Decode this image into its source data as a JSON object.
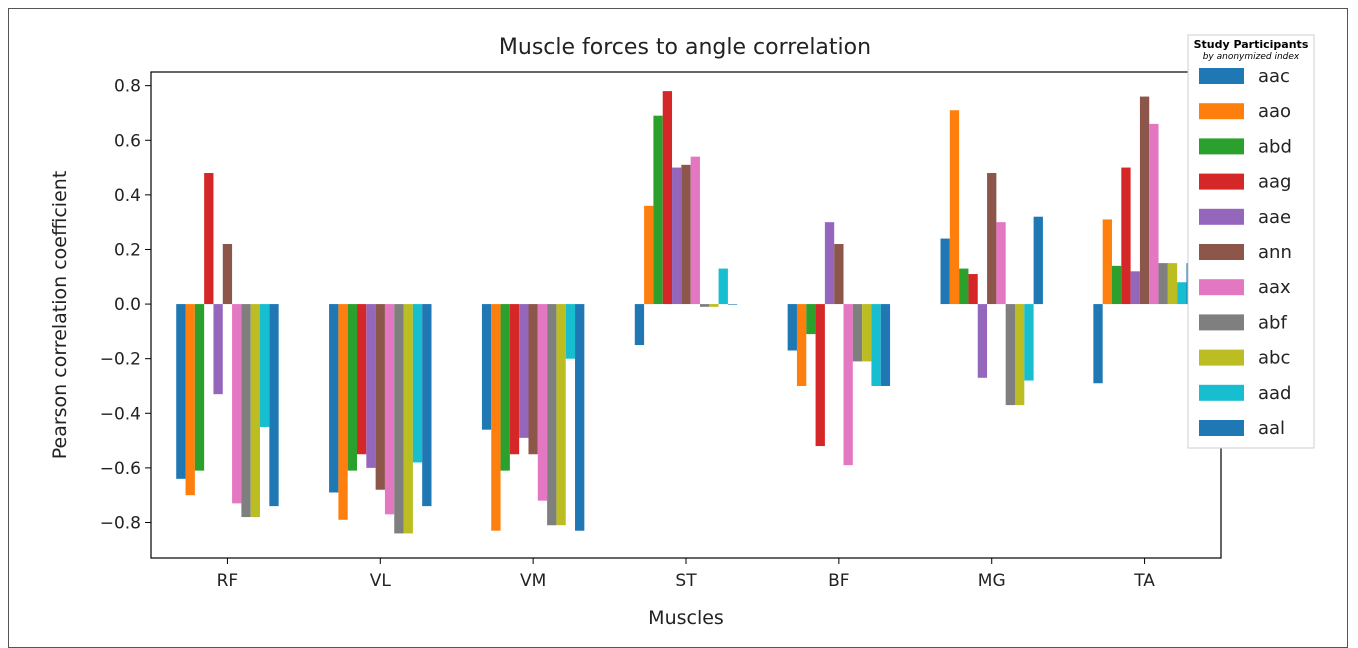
{
  "chart_data": {
    "type": "bar",
    "title": "Muscle forces to angle correlation",
    "xlabel": "Muscles",
    "ylabel": "Pearson correlation coefficient",
    "ylim": [
      -0.93,
      0.85
    ],
    "yticks": [
      0.8,
      0.6,
      0.4,
      0.2,
      0.0,
      -0.2,
      -0.4,
      -0.6,
      -0.8
    ],
    "ytick_labels": [
      "0.8",
      "0.6",
      "0.4",
      "0.2",
      "0.0",
      "−0.2",
      "−0.4",
      "−0.6",
      "−0.8"
    ],
    "categories": [
      "RF",
      "VL",
      "VM",
      "ST",
      "BF",
      "MG",
      "TA"
    ],
    "legend": {
      "title": "Study Participants",
      "subtitle": "by anonymized index",
      "placement": "outside-right"
    },
    "series": [
      {
        "name": "aac",
        "color": "#1f77b4",
        "values": [
          -0.64,
          -0.69,
          -0.46,
          -0.15,
          -0.17,
          0.24,
          -0.29
        ]
      },
      {
        "name": "aao",
        "color": "#ff7f0e",
        "values": [
          -0.7,
          -0.79,
          -0.83,
          0.36,
          -0.3,
          0.71,
          0.31
        ]
      },
      {
        "name": "abd",
        "color": "#2ca02c",
        "values": [
          -0.61,
          -0.61,
          -0.61,
          0.69,
          -0.11,
          0.13,
          0.14
        ]
      },
      {
        "name": "aag",
        "color": "#d62728",
        "values": [
          0.48,
          -0.55,
          -0.55,
          0.78,
          -0.52,
          0.11,
          0.5
        ]
      },
      {
        "name": "aae",
        "color": "#9467bd",
        "values": [
          -0.33,
          -0.6,
          -0.49,
          0.5,
          0.3,
          -0.27,
          0.12
        ]
      },
      {
        "name": "ann",
        "color": "#8c564b",
        "values": [
          0.22,
          -0.68,
          -0.55,
          0.51,
          0.22,
          0.48,
          0.76
        ]
      },
      {
        "name": "aax",
        "color": "#e377c2",
        "values": [
          -0.73,
          -0.77,
          -0.72,
          0.54,
          -0.59,
          0.3,
          0.66
        ]
      },
      {
        "name": "abf",
        "color": "#7f7f7f",
        "values": [
          -0.78,
          -0.84,
          -0.81,
          -0.01,
          -0.21,
          -0.37,
          0.15
        ]
      },
      {
        "name": "abc",
        "color": "#bcbd22",
        "values": [
          -0.78,
          -0.84,
          -0.81,
          -0.01,
          -0.21,
          -0.37,
          0.15
        ]
      },
      {
        "name": "aad",
        "color": "#17becf",
        "values": [
          -0.45,
          -0.58,
          -0.2,
          0.13,
          -0.3,
          -0.28,
          0.08
        ]
      },
      {
        "name": "aal",
        "color": "#1f77b4",
        "values": [
          -0.74,
          -0.74,
          -0.83,
          0.0,
          -0.3,
          0.32,
          0.15
        ]
      }
    ]
  }
}
